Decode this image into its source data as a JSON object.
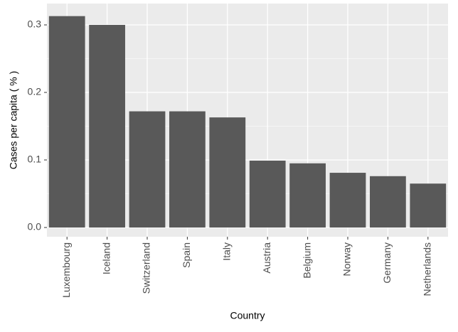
{
  "chart_data": {
    "type": "bar",
    "x_label": "Country",
    "y_label": "Cases per capita ( % )",
    "categories": [
      "Luxembourg",
      "Iceland",
      "Switzerland",
      "Spain",
      "Italy",
      "Austria",
      "Belgium",
      "Norway",
      "Germany",
      "Netherlands"
    ],
    "values": [
      0.313,
      0.3,
      0.172,
      0.172,
      0.163,
      0.099,
      0.095,
      0.081,
      0.076,
      0.065
    ],
    "color": "#595959",
    "ylim": [
      -0.0137,
      0.3316
    ],
    "yticks": [
      {
        "value": 0,
        "label": "0.0"
      },
      0.1,
      0.2,
      0.3
    ],
    "grid": true,
    "minor_grid": true
  }
}
